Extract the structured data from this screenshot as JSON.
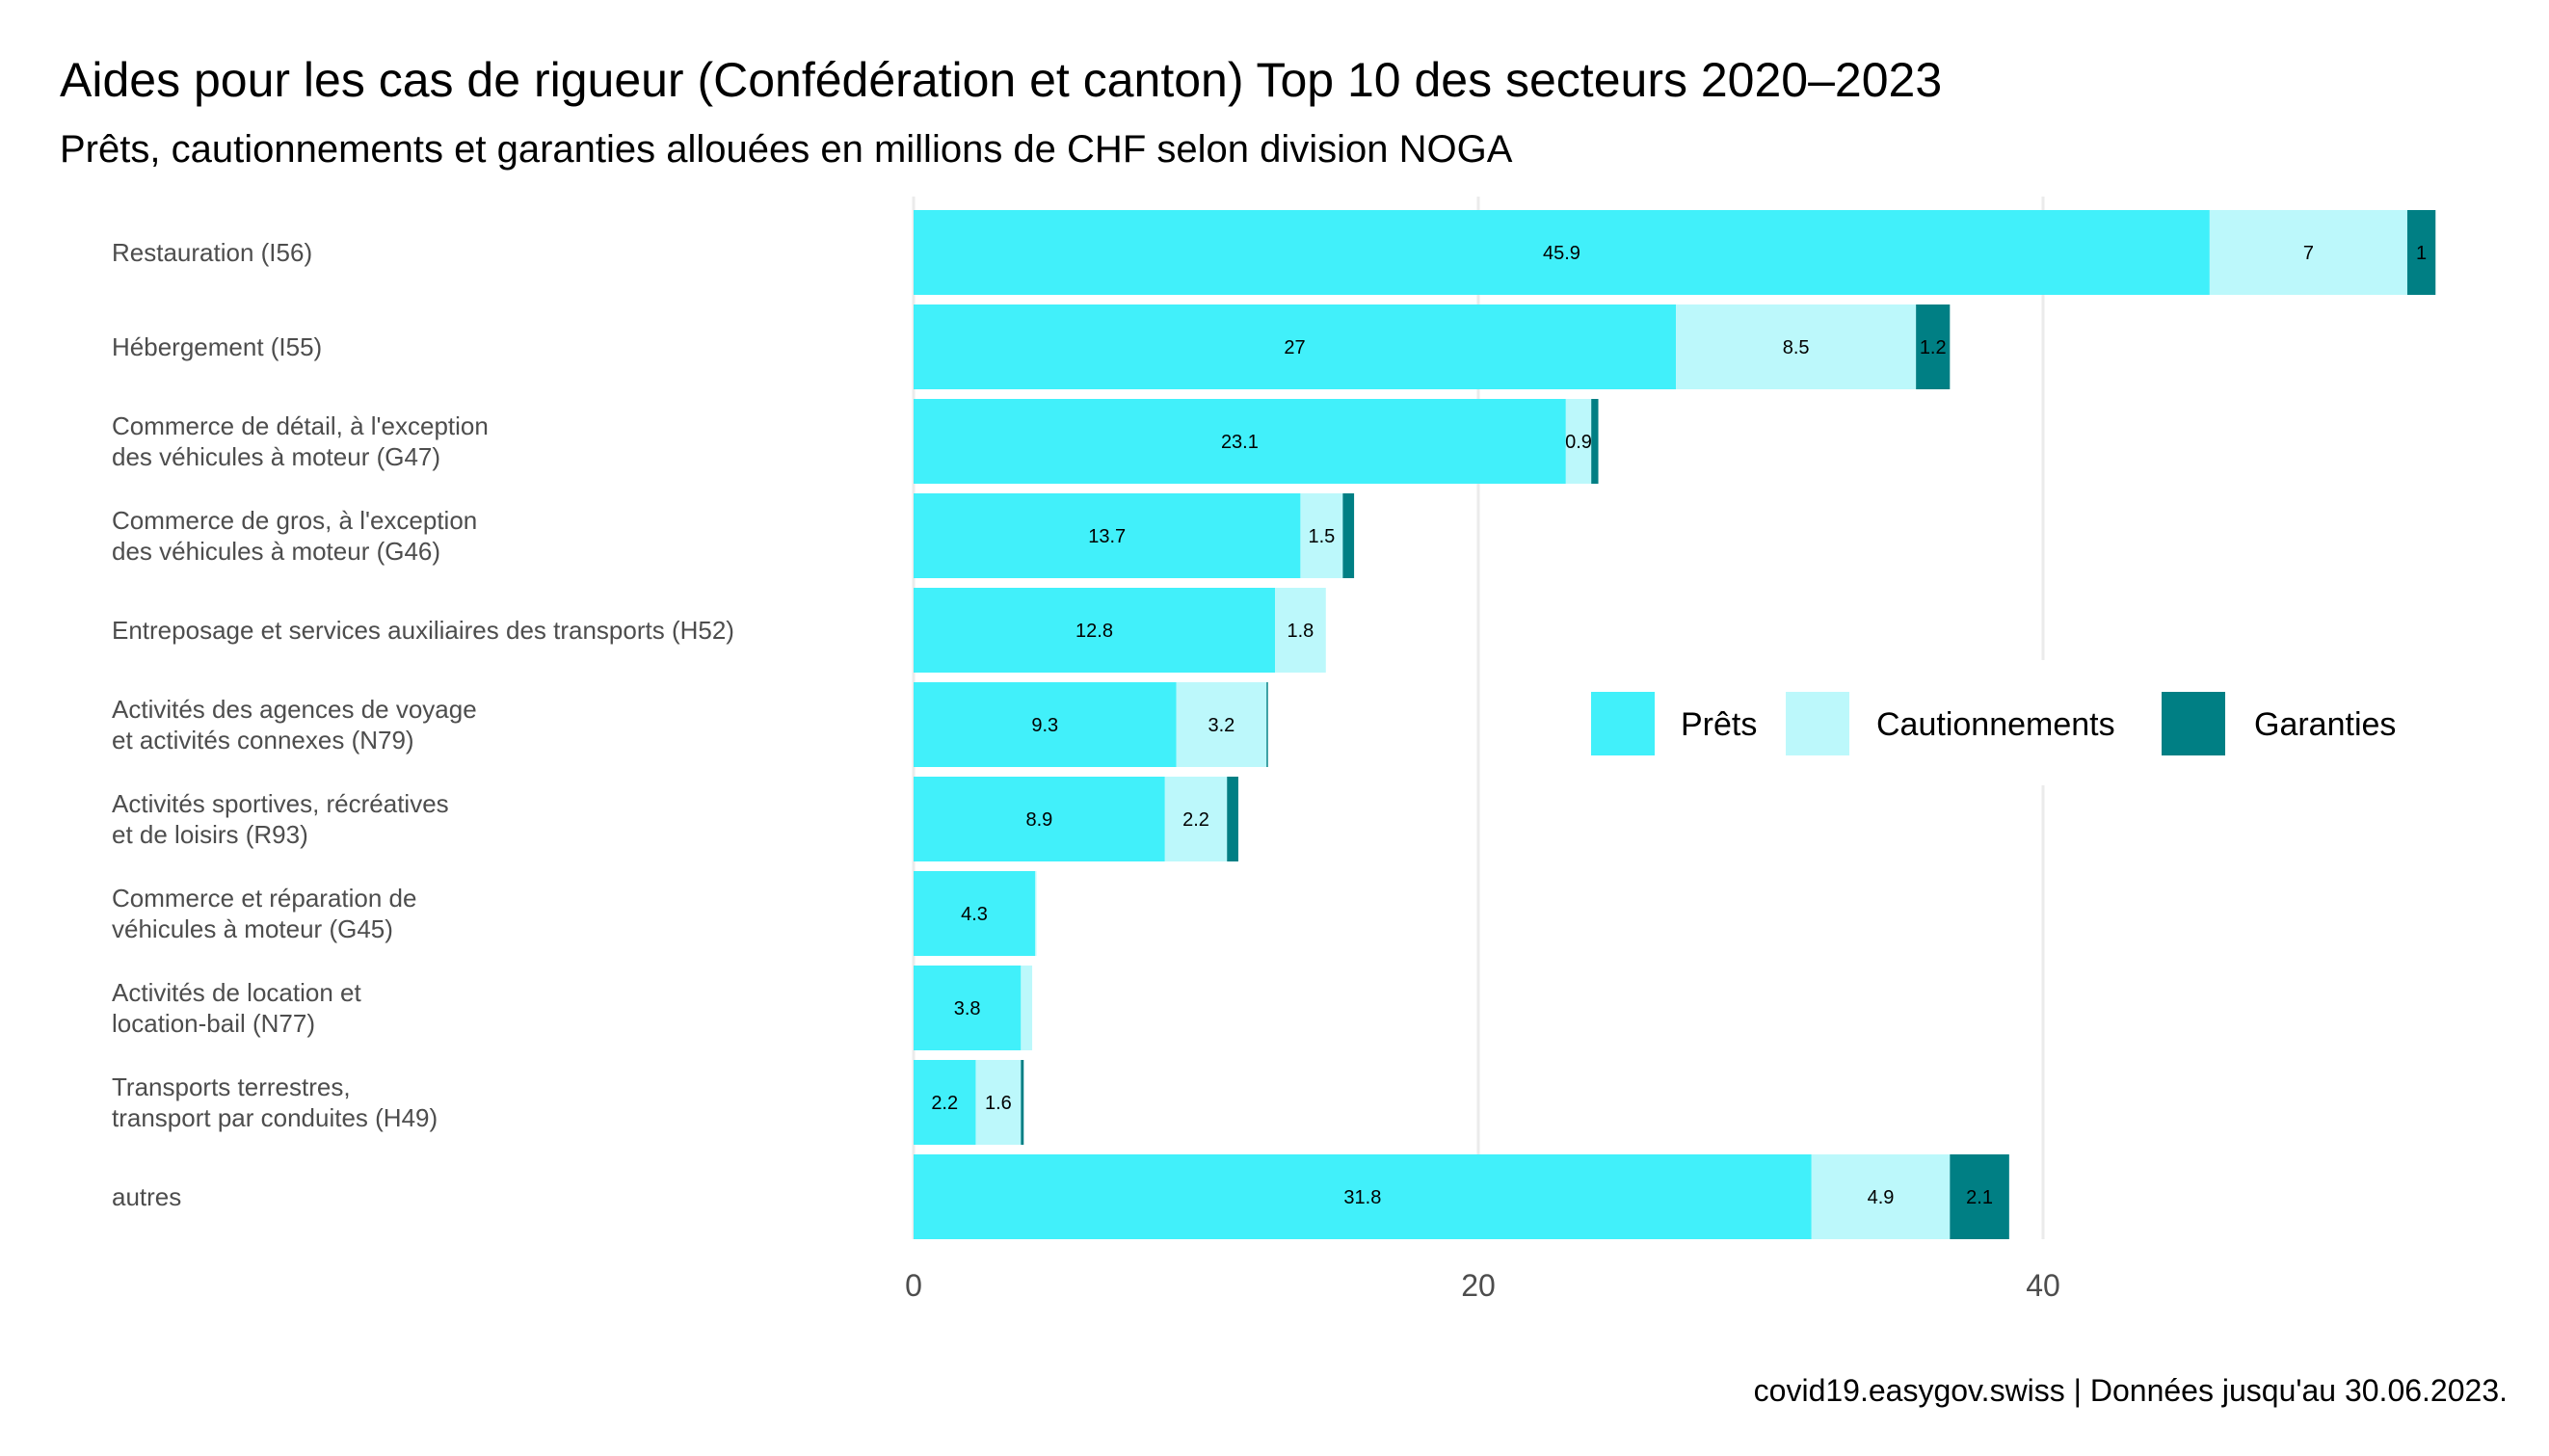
{
  "chart_data": {
    "type": "bar",
    "orientation": "horizontal",
    "stacked": true,
    "title": "Aides pour les cas de rigueur (Confédération et canton) Top 10 des secteurs 2020–2023",
    "subtitle": "Prêts, cautionnements et garanties allouées en millions de CHF selon division NOGA",
    "caption": "covid19.easygov.swiss | Données jusqu'au 30.06.2023.",
    "categories": [
      [
        "Restauration (I56)"
      ],
      [
        "Hébergement (I55)"
      ],
      [
        "Commerce de détail, à l'exception",
        "des véhicules à moteur (G47)"
      ],
      [
        "Commerce de gros, à l'exception",
        "des véhicules à moteur (G46)"
      ],
      [
        "Entreposage et services auxiliaires des transports (H52)"
      ],
      [
        "Activités des agences de voyage",
        "et activités connexes (N79)"
      ],
      [
        "Activités sportives, récréatives",
        "et de loisirs (R93)"
      ],
      [
        "Commerce et réparation de",
        "véhicules à moteur (G45)"
      ],
      [
        "Activités de location et",
        "location-bail (N77)"
      ],
      [
        "Transports terrestres,",
        "transport par conduites (H49)"
      ],
      [
        "autres"
      ]
    ],
    "series": [
      {
        "name": "Prêts",
        "color": "#41f0fa",
        "values": [
          45.9,
          27,
          23.1,
          13.7,
          12.8,
          9.3,
          8.9,
          4.3,
          3.8,
          2.2,
          31.8
        ],
        "labels": [
          "45.9",
          "27",
          "23.1",
          "13.7",
          "12.8",
          "9.3",
          "8.9",
          "4.3",
          "3.8",
          "2.2",
          "31.8"
        ]
      },
      {
        "name": "Cautionnements",
        "color": "#bcf8fb",
        "values": [
          7,
          8.5,
          0.9,
          1.5,
          1.8,
          3.2,
          2.2,
          0.05,
          0.4,
          1.6,
          4.9
        ],
        "labels": [
          "7",
          "8.5",
          "0.9",
          "1.5",
          "1.8",
          "3.2",
          "2.2",
          "",
          "",
          "1.6",
          "4.9"
        ]
      },
      {
        "name": "Garanties",
        "color": "#007f84",
        "values": [
          1,
          1.2,
          0.25,
          0.4,
          0,
          0.05,
          0.4,
          0,
          0,
          0.1,
          2.1
        ],
        "labels": [
          "1",
          "1.2",
          "",
          "",
          "",
          "",
          "",
          "",
          "",
          "",
          "2.1"
        ]
      }
    ],
    "xlim": [
      0,
      54
    ],
    "xticks": [
      "0",
      "20",
      "40"
    ],
    "xtick_values": [
      0,
      20,
      40
    ],
    "grid": true,
    "legend_position": "right-center"
  }
}
